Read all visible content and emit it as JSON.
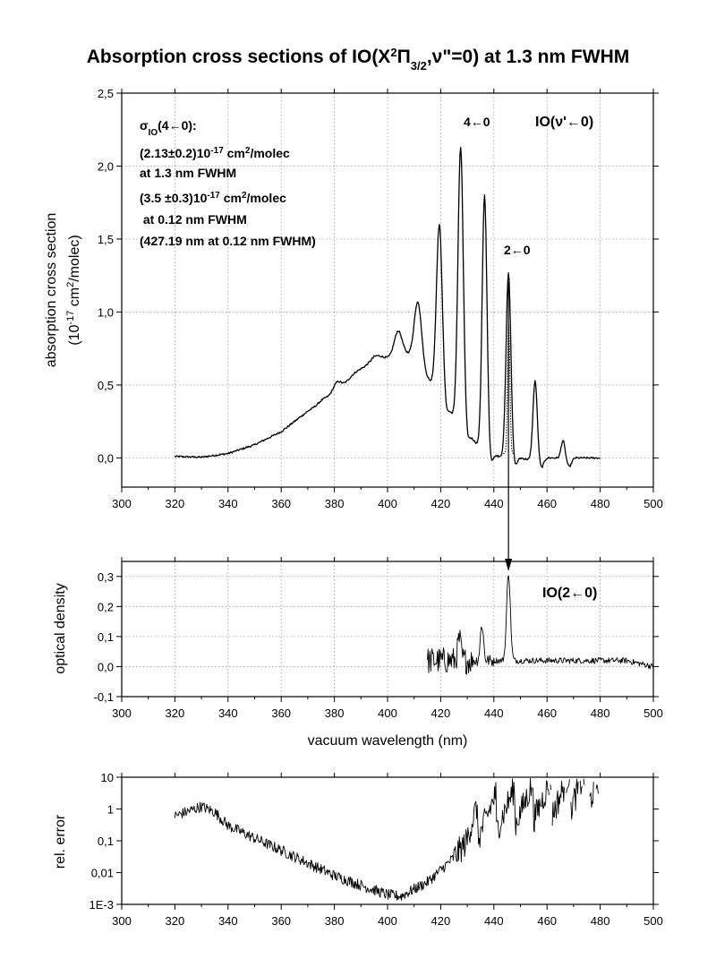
{
  "figure": {
    "title_parts": {
      "p1": "Absorption cross sections of IO(X",
      "sup": "2",
      "p2": "Π",
      "sub": "3/2",
      "p3": ",ν\"=0) at 1.3 nm FWHM"
    }
  },
  "chart_data": [
    {
      "type": "line",
      "panel": "cross-section",
      "ylabel_line1": "absorption cross section",
      "ylabel_line2_parts": {
        "a": "(10",
        "sup": "-17",
        "b": " cm",
        "sup2": "2",
        "c": "/molec)"
      },
      "xlim": [
        300,
        500
      ],
      "ylim": [
        -0.2,
        2.5
      ],
      "xticks": [
        "300",
        "320",
        "340",
        "360",
        "380",
        "400",
        "420",
        "440",
        "460",
        "480",
        "500"
      ],
      "yticks": [
        {
          "v": 0.0,
          "label": "0,0"
        },
        {
          "v": 0.5,
          "label": "0,5"
        },
        {
          "v": 1.0,
          "label": "1,0"
        },
        {
          "v": 1.5,
          "label": "1,5"
        },
        {
          "v": 2.0,
          "label": "2,0"
        },
        {
          "v": 2.5,
          "label": "2,5"
        }
      ],
      "grid": true,
      "baseline_points": [
        [
          320,
          0.01
        ],
        [
          330,
          0.005
        ],
        [
          340,
          0.03
        ],
        [
          350,
          0.09
        ],
        [
          360,
          0.18
        ],
        [
          365,
          0.25
        ],
        [
          370,
          0.32
        ],
        [
          375,
          0.38
        ],
        [
          380,
          0.45
        ],
        [
          385,
          0.52
        ],
        [
          390,
          0.6
        ],
        [
          395,
          0.67
        ],
        [
          400,
          0.68
        ],
        [
          405,
          0.7
        ],
        [
          410,
          0.72
        ],
        [
          415,
          0.55
        ],
        [
          420,
          0.42
        ],
        [
          425,
          0.28
        ],
        [
          430,
          0.18
        ],
        [
          435,
          0.06
        ],
        [
          440,
          0.02
        ],
        [
          445,
          0.0
        ],
        [
          450,
          0.0
        ],
        [
          455,
          -0.02
        ],
        [
          460,
          0.0
        ],
        [
          465,
          0.0
        ],
        [
          470,
          0.0
        ],
        [
          480,
          0.0
        ]
      ],
      "peaks": [
        {
          "x": 375.5,
          "y": 0.4,
          "w": 1.3
        },
        {
          "x": 381.0,
          "y": 0.52,
          "w": 1.4
        },
        {
          "x": 387.5,
          "y": 0.58,
          "w": 2.2
        },
        {
          "x": 396.0,
          "y": 0.7,
          "w": 2.2
        },
        {
          "x": 404.0,
          "y": 0.87,
          "w": 1.5
        },
        {
          "x": 411.5,
          "y": 1.07,
          "w": 1.3
        },
        {
          "x": 419.5,
          "y": 1.6,
          "w": 1.1
        },
        {
          "x": 427.5,
          "y": 2.13,
          "w": 1.0
        },
        {
          "x": 436.5,
          "y": 1.8,
          "w": 0.9
        },
        {
          "x": 445.5,
          "y": 1.27,
          "w": 0.9
        },
        {
          "x": 455.5,
          "y": 0.53,
          "w": 0.8
        },
        {
          "x": 466.0,
          "y": 0.12,
          "w": 0.7
        }
      ],
      "arrow": {
        "x": 445.5
      },
      "annotations": {
        "sigma": {
          "a": "σ",
          "sub": "IO",
          "b": "(4←0):"
        },
        "l1": {
          "a": "(2.13±0.2)10",
          "sup": "-17",
          "b": " cm",
          "sup2": "2",
          "c": "/molec"
        },
        "l2": "at 1.3 nm FWHM",
        "l3": {
          "a": "(3.5 ±0.3)10",
          "sup": "-17",
          "b": " cm",
          "sup2": "2",
          "c": "/molec"
        },
        "l4": " at 0.12 nm FWHM",
        "l5": "(427.19 nm at 0.12 nm FWHM)",
        "band_4_0": "4←0",
        "band_2_0": "2←0",
        "panel_label": "IO(ν'←0)"
      }
    },
    {
      "type": "line",
      "panel": "optical-density",
      "ylabel": "optical density",
      "xlabel": "vacuum wavelength (nm)",
      "panel_label": "IO(2←0)",
      "xlim": [
        300,
        500
      ],
      "ylim": [
        -0.1,
        0.35
      ],
      "xticks": [
        "300",
        "320",
        "340",
        "360",
        "380",
        "400",
        "420",
        "440",
        "460",
        "480",
        "500"
      ],
      "yticks": [
        {
          "v": -0.1,
          "label": "-0,1"
        },
        {
          "v": 0.0,
          "label": "0,0"
        },
        {
          "v": 0.1,
          "label": "0,1"
        },
        {
          "v": 0.2,
          "label": "0,2"
        },
        {
          "v": 0.3,
          "label": "0,3"
        }
      ],
      "grid": true,
      "range": [
        415,
        500
      ],
      "peaks": [
        {
          "x": 427.0,
          "y": 0.07,
          "w": 0.6
        },
        {
          "x": 435.5,
          "y": 0.12,
          "w": 0.6
        },
        {
          "x": 445.5,
          "y": 0.29,
          "w": 0.7
        }
      ]
    },
    {
      "type": "line",
      "panel": "relative-error",
      "ylabel": "rel. error",
      "xlim": [
        300,
        500
      ],
      "yscale": "log",
      "ylim": [
        0.001,
        10
      ],
      "xticks": [
        "300",
        "320",
        "340",
        "360",
        "380",
        "400",
        "420",
        "440",
        "460",
        "480",
        "500"
      ],
      "yticks": [
        {
          "v": 0.001,
          "label": "1E-3"
        },
        {
          "v": 0.01,
          "label": "0,01"
        },
        {
          "v": 0.1,
          "label": "0,1"
        },
        {
          "v": 1,
          "label": "1"
        },
        {
          "v": 10,
          "label": "10"
        }
      ],
      "grid": false,
      "range": [
        320,
        480
      ],
      "trend_log": [
        [
          320,
          0.6
        ],
        [
          330,
          1.2
        ],
        [
          335,
          0.8
        ],
        [
          340,
          0.3
        ],
        [
          350,
          0.12
        ],
        [
          360,
          0.05
        ],
        [
          370,
          0.02
        ],
        [
          380,
          0.008
        ],
        [
          390,
          0.004
        ],
        [
          400,
          0.002
        ],
        [
          405,
          0.0018
        ],
        [
          410,
          0.003
        ],
        [
          415,
          0.005
        ],
        [
          420,
          0.012
        ],
        [
          425,
          0.03
        ],
        [
          430,
          0.1
        ],
        [
          435,
          0.3
        ],
        [
          440,
          0.5
        ],
        [
          445,
          0.7
        ],
        [
          450,
          0.9
        ],
        [
          455,
          1.2
        ],
        [
          460,
          1.5
        ],
        [
          465,
          2.0
        ],
        [
          470,
          3.0
        ],
        [
          480,
          6.0
        ]
      ]
    }
  ]
}
